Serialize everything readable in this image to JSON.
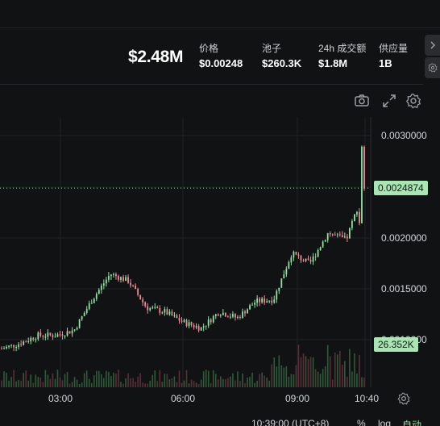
{
  "stats": {
    "market_cap": "$2.48M",
    "items": [
      {
        "label": "价格",
        "value": "$0.00248"
      },
      {
        "label": "池子",
        "value": "$260.3K"
      },
      {
        "label": "24h 成交额",
        "value": "$1.8M"
      },
      {
        "label": "供应量",
        "value": "1B"
      }
    ]
  },
  "toolbar": {
    "icons": [
      "camera-icon",
      "expand-icon",
      "gear-icon"
    ]
  },
  "rail": {
    "icons": [
      "chevron-right-icon",
      "gear-icon"
    ]
  },
  "chart": {
    "price_axis": [
      "0.0030000",
      "0.0020000",
      "0.0015000",
      "0.0010000"
    ],
    "current_price_tag": "0.0024874",
    "volume_tag": "26.352K",
    "time_axis": [
      "03:00",
      "06:00",
      "09:00",
      "10:40"
    ],
    "footer": {
      "timestamp": "10:39:00 (UTC+8)",
      "percent": "%",
      "log": "log",
      "auto": "自动"
    },
    "colors": {
      "up": "#8fe3a3",
      "down": "#f08a9a",
      "accent_tag": "#a9e6b4"
    }
  },
  "chart_data": {
    "type": "line",
    "x": [
      "01:30",
      "02:00",
      "02:30",
      "03:00",
      "03:30",
      "04:00",
      "04:30",
      "05:00",
      "05:30",
      "06:00",
      "06:30",
      "07:00",
      "07:30",
      "08:00",
      "08:30",
      "09:00",
      "09:30",
      "10:00",
      "10:20",
      "10:30",
      "10:39"
    ],
    "series": [
      {
        "values": [
          0.00092,
          0.00097,
          0.00105,
          0.00105,
          0.0011,
          0.0014,
          0.00165,
          0.00158,
          0.00132,
          0.00128,
          0.00118,
          0.00112,
          0.00128,
          0.00122,
          0.00138,
          0.0014,
          0.00185,
          0.00175,
          0.00205,
          0.00198,
          0.00249
        ]
      }
    ],
    "ylim": [
      0.0007,
      0.0032
    ],
    "yticks": [
      0.001,
      0.0015,
      0.002,
      0.003
    ],
    "current_price": 0.0024874,
    "grid": true
  }
}
